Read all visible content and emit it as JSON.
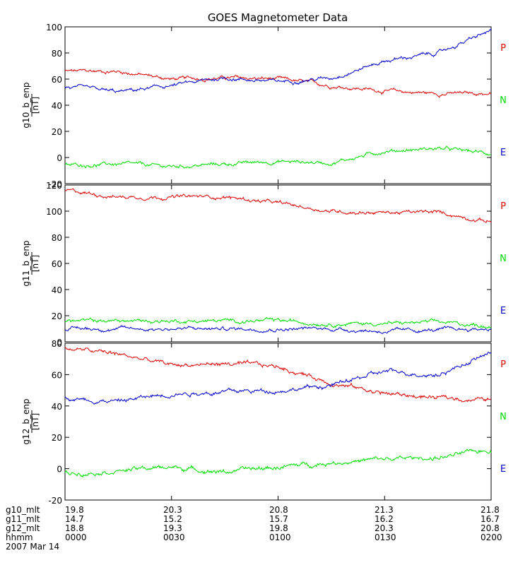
{
  "colors": {
    "P": "#dd0000",
    "N": "#00dd00",
    "E": "#0000cc"
  },
  "legend": {
    "p": "P",
    "n": "N",
    "e": "E"
  },
  "unit": "[nT]",
  "chart_data": [
    {
      "type": "line",
      "title": "GOES Magnetometer Data",
      "ylabel": "g10_b_enp",
      "ylim": [
        -20,
        100
      ],
      "yticks": [
        "100",
        "80",
        "60",
        "40",
        "20",
        "0",
        "-20"
      ],
      "x_minutes": [
        0,
        15,
        30,
        45,
        60,
        75,
        90,
        105,
        120
      ],
      "series": [
        {
          "name": "P",
          "values": [
            66,
            66,
            60,
            61,
            60,
            55,
            51,
            49,
            49
          ]
        },
        {
          "name": "N",
          "values": [
            -6,
            -5,
            -7,
            -5,
            -3,
            -4,
            5,
            7,
            3
          ]
        },
        {
          "name": "E",
          "values": [
            54,
            50,
            55,
            61,
            58,
            61,
            74,
            80,
            97
          ]
        }
      ]
    },
    {
      "type": "line",
      "ylabel": "g11_b_enp",
      "ylim": [
        0,
        120
      ],
      "yticks": [
        "120",
        "100",
        "80",
        "60",
        "40",
        "20",
        "0"
      ],
      "x_minutes": [
        0,
        15,
        30,
        45,
        60,
        75,
        90,
        105,
        120
      ],
      "series": [
        {
          "name": "P",
          "values": [
            116,
            111,
            111,
            111,
            106,
            100,
            99,
            99,
            92
          ]
        },
        {
          "name": "N",
          "values": [
            16,
            16,
            16,
            16,
            16,
            14,
            14,
            15,
            12
          ]
        },
        {
          "name": "E",
          "values": [
            10,
            10,
            10,
            10,
            10,
            10,
            8,
            9,
            10
          ]
        }
      ]
    },
    {
      "type": "line",
      "ylabel": "g12_b_enp",
      "ylim": [
        -20,
        80
      ],
      "yticks": [
        "80",
        "60",
        "40",
        "20",
        "0",
        "-20"
      ],
      "x_minutes": [
        0,
        15,
        30,
        45,
        60,
        75,
        90,
        105,
        120
      ],
      "series": [
        {
          "name": "P",
          "values": [
            77,
            73,
            66,
            67,
            65,
            55,
            48,
            45,
            44
          ]
        },
        {
          "name": "N",
          "values": [
            -3,
            -1,
            1,
            -2,
            1,
            4,
            6,
            7,
            12
          ]
        },
        {
          "name": "E",
          "values": [
            45,
            43,
            48,
            49,
            50,
            53,
            62,
            60,
            74
          ]
        }
      ]
    }
  ],
  "footer": {
    "rows": [
      {
        "label": "g10_mlt",
        "values": [
          "19.8",
          "20.3",
          "20.8",
          "21.3",
          "21.8"
        ]
      },
      {
        "label": "g11_mlt",
        "values": [
          "14.7",
          "15.2",
          "15.7",
          "16.2",
          "16.7"
        ]
      },
      {
        "label": "g12_mlt",
        "values": [
          "18.8",
          "19.3",
          "19.8",
          "20.3",
          "20.8"
        ]
      },
      {
        "label": "hhmm",
        "values": [
          "0000",
          "0030",
          "0100",
          "0130",
          "0200"
        ]
      }
    ],
    "date": "2007 Mar 14"
  }
}
